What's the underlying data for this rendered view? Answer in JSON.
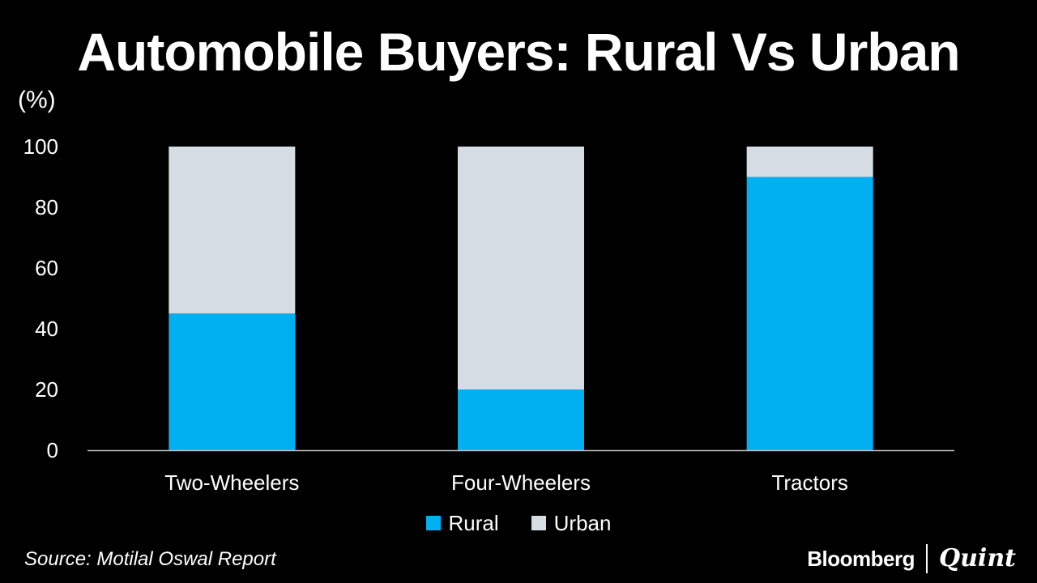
{
  "title": "Automobile Buyers: Rural Vs Urban",
  "unit_label": "(%)",
  "source": "Source: Motilal Oswal Report",
  "brand": {
    "left": "Bloomberg",
    "right": "Quint"
  },
  "colors": {
    "rural": "#00b0f0",
    "urban": "#d6dce4",
    "axis": "#bfbfbf"
  },
  "chart_data": {
    "type": "bar",
    "stacked": true,
    "categories": [
      "Two-Wheelers",
      "Four-Wheelers",
      "Tractors"
    ],
    "series": [
      {
        "name": "Rural",
        "values": [
          45,
          20,
          90
        ]
      },
      {
        "name": "Urban",
        "values": [
          55,
          80,
          10
        ]
      }
    ],
    "title": "Automobile Buyers: Rural Vs Urban",
    "ylabel": "(%)",
    "xlabel": "",
    "ylim": [
      0,
      100
    ],
    "yticks": [
      0,
      20,
      40,
      60,
      80,
      100
    ],
    "grid": false,
    "legend": "bottom"
  }
}
